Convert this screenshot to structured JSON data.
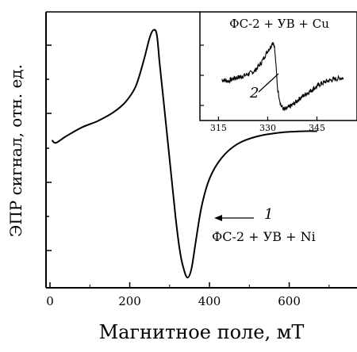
{
  "chart_data": [
    {
      "type": "line",
      "xlabel": "Магнитное поле, мТ",
      "ylabel": "ЭПР сигнал, отн. ед.",
      "xlim": [
        -10,
        770
      ],
      "ylim": [
        -1.15,
        1.0
      ],
      "x_ticks": [
        "0",
        "200",
        "400",
        "600"
      ],
      "x_tick_values": [
        0,
        200,
        400,
        600
      ],
      "y_tick_labels_shown": false,
      "series": [
        {
          "label": "1",
          "annotation": "ФС-2 + УВ + Ni",
          "x": [
            5,
            15,
            40,
            80,
            120,
            160,
            190,
            215,
            235,
            250,
            260,
            268,
            275,
            285,
            295,
            305,
            315,
            325,
            335,
            345,
            355,
            365,
            380,
            400,
            430,
            470,
            520,
            580,
            640,
            670
          ],
          "y": [
            0.0,
            -0.02,
            0.03,
            0.1,
            0.15,
            0.22,
            0.3,
            0.42,
            0.62,
            0.8,
            0.86,
            0.82,
            0.6,
            0.3,
            0.0,
            -0.3,
            -0.6,
            -0.85,
            -1.0,
            -1.07,
            -1.0,
            -0.8,
            -0.52,
            -0.3,
            -0.14,
            -0.03,
            0.03,
            0.06,
            0.07,
            0.07
          ]
        }
      ]
    },
    {
      "type": "line",
      "title": "ФС-2 + УВ + Cu",
      "xlim": [
        312,
        356
      ],
      "ylim": [
        -1.3,
        1.45
      ],
      "x_ticks": [
        "315",
        "330",
        "345"
      ],
      "x_tick_values": [
        315,
        330,
        345
      ],
      "y_tick_labels_shown": false,
      "series": [
        {
          "label": "2",
          "x": [
            316,
            318,
            320,
            322,
            324,
            326,
            328,
            329,
            330,
            331,
            331.5,
            332,
            332.5,
            333,
            334,
            335,
            336,
            338,
            340,
            342,
            344,
            346,
            348,
            350,
            352,
            353
          ],
          "y": [
            0.0,
            -0.05,
            0.05,
            0.1,
            0.18,
            0.28,
            0.55,
            0.75,
            0.95,
            1.1,
            1.25,
            1.15,
            0.5,
            -0.3,
            -0.85,
            -1.0,
            -0.95,
            -0.8,
            -0.6,
            -0.45,
            -0.3,
            -0.15,
            -0.05,
            0.0,
            0.05,
            0.05
          ]
        }
      ]
    }
  ]
}
